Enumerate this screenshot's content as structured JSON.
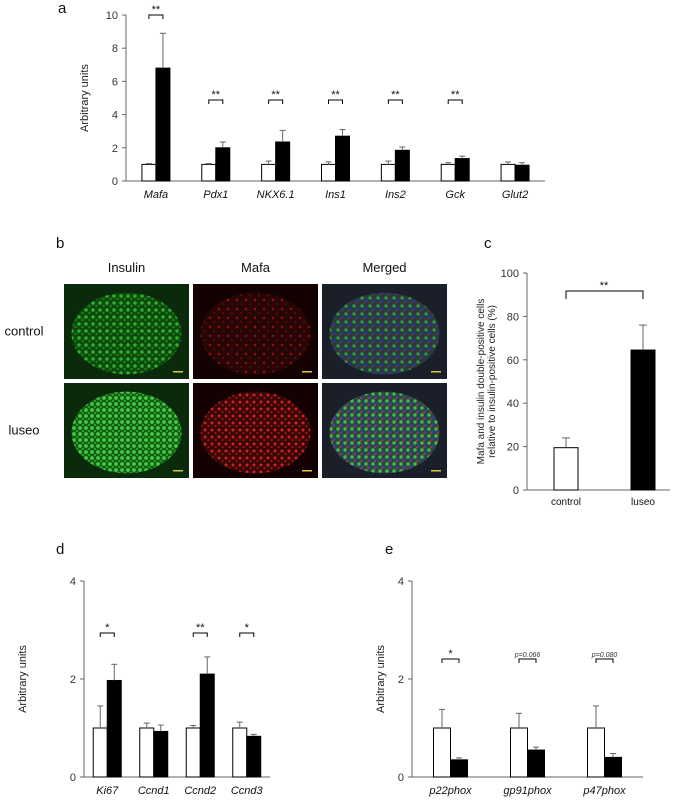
{
  "panels": {
    "a": "a",
    "b": "b",
    "c": "c",
    "d": "d",
    "e": "e"
  },
  "micrograph": {
    "columns": [
      "Insulin",
      "Mafa",
      "Merged"
    ],
    "rows": [
      "control",
      "luseo"
    ]
  },
  "colors": {
    "control": "#ffffff",
    "luseo": "#000000",
    "insulin": "#1f9a1f",
    "mafa": "#c01818",
    "dapi": "#2233aa"
  },
  "chart_data": [
    {
      "id": "a",
      "type": "bar",
      "ylabel": "Arbitrary units",
      "ylim": [
        0,
        10
      ],
      "yticks": [
        0,
        2,
        4,
        6,
        8,
        10
      ],
      "categories": [
        "Mafa",
        "Pdx1",
        "NKX6.1",
        "Ins1",
        "Ins2",
        "Gck",
        "Glut2"
      ],
      "series": [
        {
          "values": [
            1.0,
            1.0,
            1.0,
            1.0,
            1.0,
            1.0,
            1.0
          ],
          "errors": [
            0.05,
            0.05,
            0.2,
            0.15,
            0.2,
            0.1,
            0.15
          ]
        },
        {
          "values": [
            6.8,
            2.0,
            2.35,
            2.7,
            1.85,
            1.35,
            0.95
          ],
          "errors": [
            2.1,
            0.35,
            0.7,
            0.4,
            0.2,
            0.15,
            0.15
          ]
        }
      ],
      "significance": [
        "**",
        "**",
        "**",
        "**",
        "**",
        "**",
        ""
      ]
    },
    {
      "id": "c",
      "type": "bar",
      "ylabel": "Mafa and insulin double-positive cells relative to insulin-positive cells (%)",
      "ylabel_lines": [
        "Mafa and insulin double-positive cells",
        "relative to insulin-positive cells (%)"
      ],
      "ylim": [
        0,
        100
      ],
      "yticks": [
        0,
        20,
        40,
        60,
        80,
        100
      ],
      "categories": [
        "control",
        "luseo"
      ],
      "values": [
        19.5,
        64.5
      ],
      "errors": [
        4.5,
        11.5
      ],
      "significance": [
        "**"
      ]
    },
    {
      "id": "d",
      "type": "bar",
      "ylabel": "Arbitrary units",
      "ylim": [
        0,
        4
      ],
      "yticks": [
        0,
        2,
        4
      ],
      "categories": [
        "Ki67",
        "Ccnd1",
        "Ccnd2",
        "Ccnd3"
      ],
      "series": [
        {
          "values": [
            1.0,
            1.0,
            1.0,
            1.0
          ],
          "errors": [
            0.45,
            0.1,
            0.05,
            0.12
          ]
        },
        {
          "values": [
            1.97,
            0.93,
            2.1,
            0.83
          ],
          "errors": [
            0.33,
            0.13,
            0.35,
            0.04
          ]
        }
      ],
      "significance": [
        "*",
        "",
        "**",
        "*"
      ]
    },
    {
      "id": "e",
      "type": "bar",
      "ylabel": "Arbitrary units",
      "ylim": [
        0,
        4
      ],
      "yticks": [
        0,
        2,
        4
      ],
      "categories": [
        "p22phox",
        "gp91phox",
        "p47phox"
      ],
      "series": [
        {
          "values": [
            1.0,
            1.0,
            1.0
          ],
          "errors": [
            0.38,
            0.3,
            0.45
          ]
        },
        {
          "values": [
            0.35,
            0.55,
            0.4
          ],
          "errors": [
            0.04,
            0.06,
            0.08
          ]
        }
      ],
      "significance": [
        "*",
        "p=0.066",
        "p=0.080"
      ]
    }
  ]
}
